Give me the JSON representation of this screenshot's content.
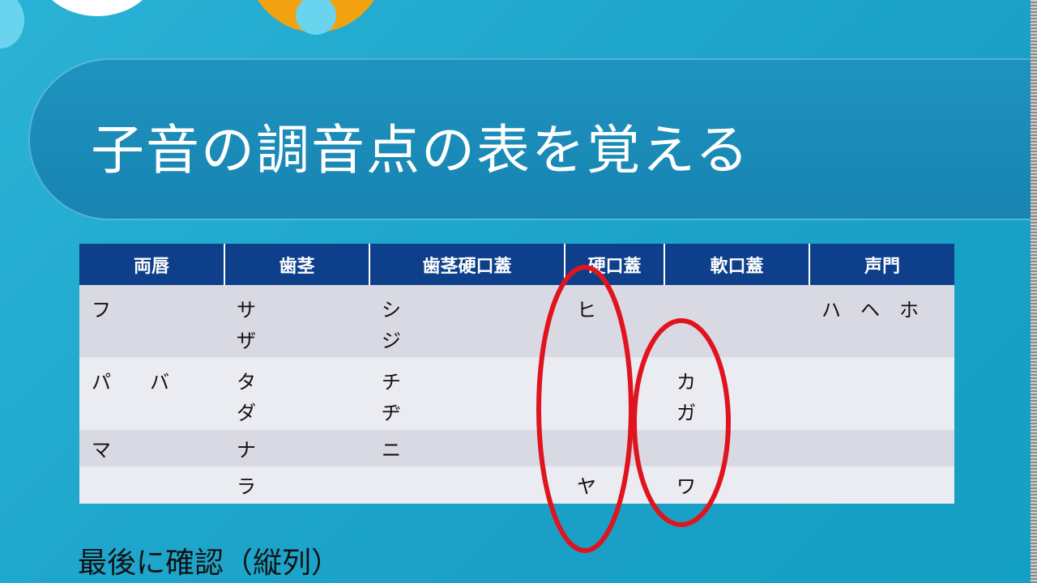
{
  "slide": {
    "title": "子音の調音点の表を覚える",
    "table": {
      "headers": [
        "両唇",
        "歯茎",
        "歯茎硬口蓋",
        "硬口蓋",
        "軟口蓋",
        "声門"
      ],
      "rows": [
        [
          "フ",
          "サ\nザ",
          "シ\nジ",
          "ヒ",
          "",
          "ハ　ヘ　ホ"
        ],
        [
          "パ　　バ",
          "タ\nダ",
          "チ\nヂ",
          "",
          "カ\nガ",
          ""
        ],
        [
          "マ",
          "ナ",
          "ニ",
          "",
          "",
          ""
        ],
        [
          "",
          "ラ",
          "",
          "ヤ",
          "ワ",
          ""
        ]
      ]
    },
    "footer": "最後に確認（縦列）",
    "colors": {
      "header": "#0d3f8a",
      "highlight_circle": "#e0141e",
      "background": "#1fa6cc"
    }
  }
}
